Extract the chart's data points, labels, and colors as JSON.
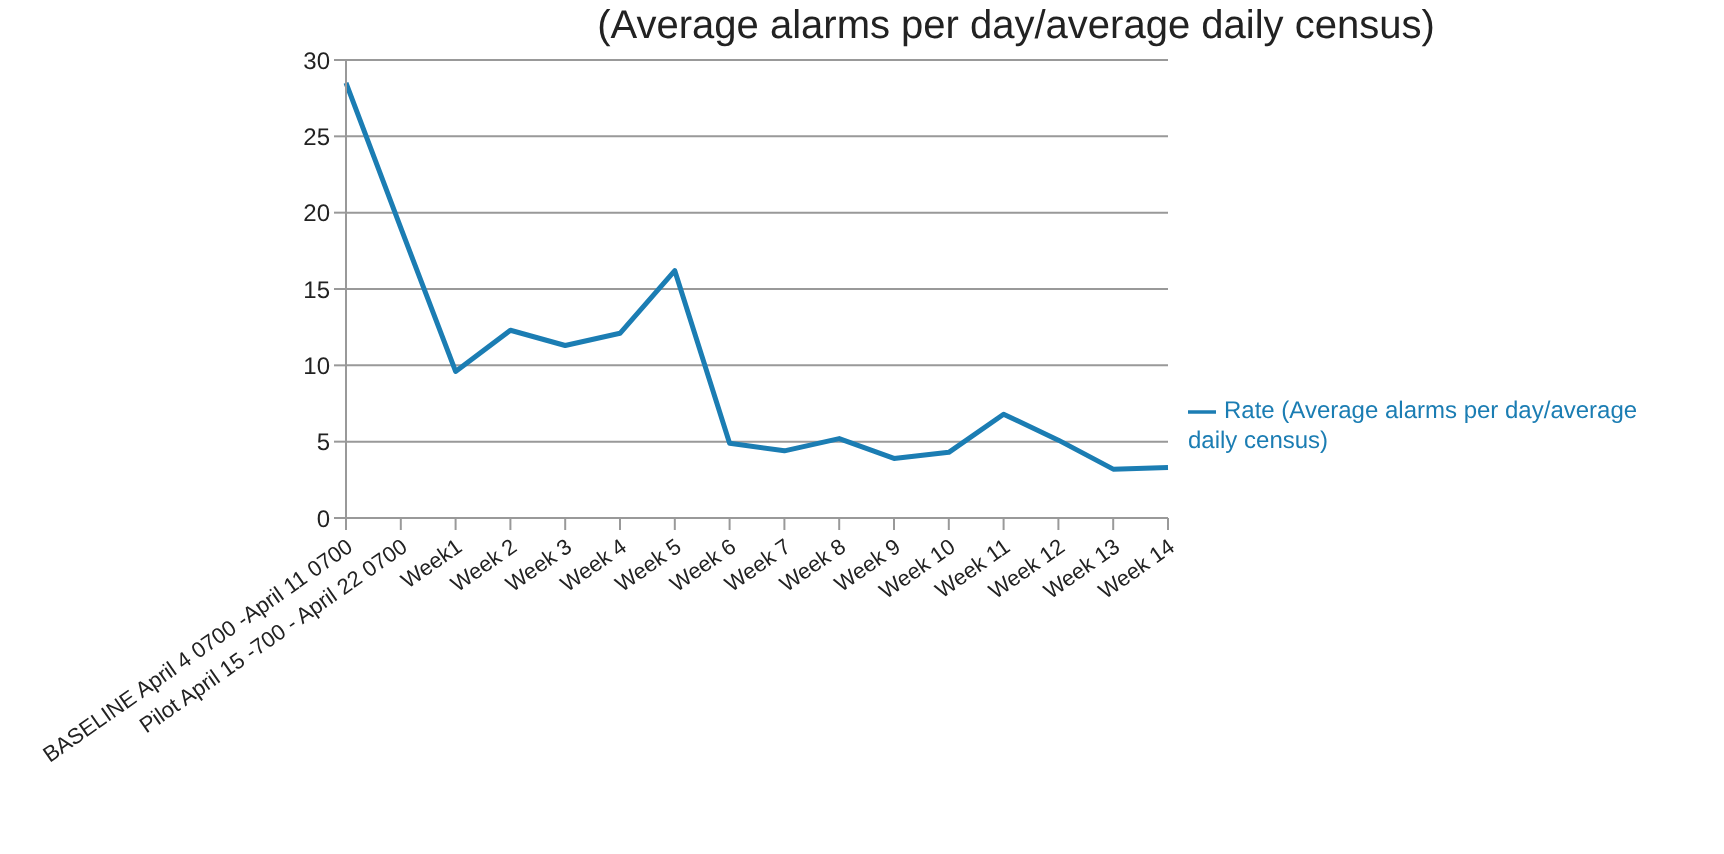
{
  "chart_data": {
    "type": "line",
    "title": "(Average alarms per day/average daily census)",
    "categories": [
      "BASELINE  April 4 0700 -April 11 0700",
      "Pilot  April 15 -700 - April 22 0700",
      "Week1",
      "Week 2",
      "Week 3",
      "Week 4",
      "Week 5",
      "Week 6",
      "Week 7",
      "Week 8",
      "Week 9",
      "Week 10",
      "Week 11",
      "Week 12",
      "Week 13",
      "Week 14"
    ],
    "series": [
      {
        "name": "Rate (Average alarms per day/average daily census)",
        "color": "#1b7db3",
        "values": [
          28.5,
          19,
          9.6,
          12.3,
          11.3,
          12.1,
          16.2,
          4.9,
          4.4,
          5.2,
          3.9,
          4.3,
          6.8,
          5.1,
          3.2,
          3.3
        ]
      }
    ],
    "ylim": [
      0,
      30
    ],
    "yticks": [
      0,
      5,
      10,
      15,
      20,
      25,
      30
    ],
    "grid": "y",
    "legend": "right",
    "marker": "none"
  }
}
